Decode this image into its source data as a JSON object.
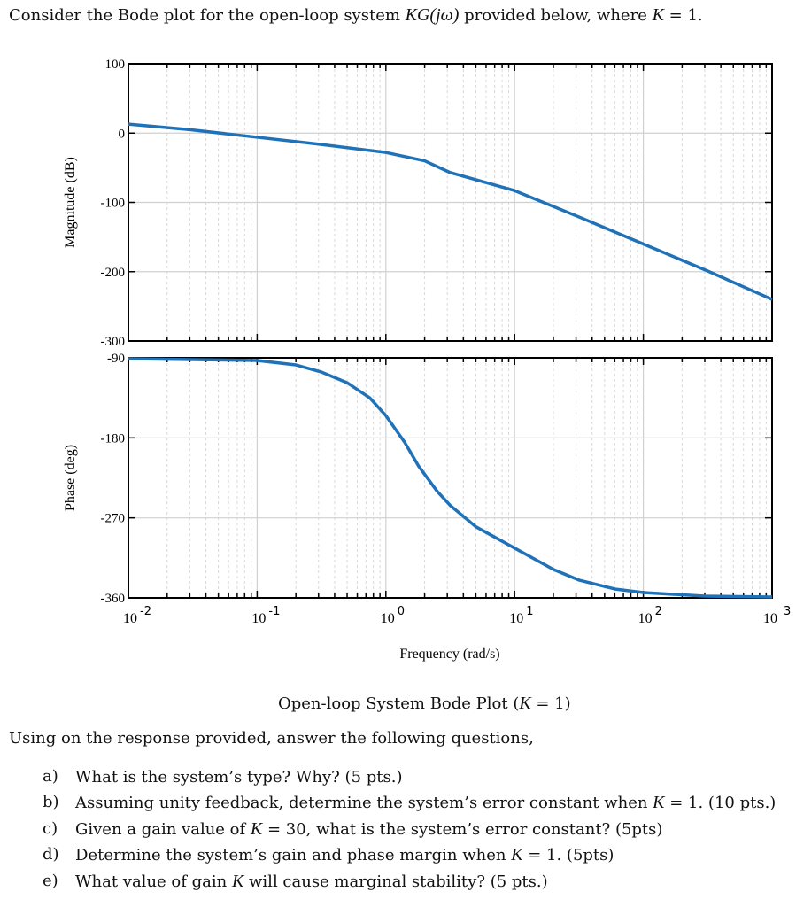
{
  "title": {
    "pre": "Consider the Bode plot for the open-loop system ",
    "math1": "KG(jω)",
    "mid": " provided below, where ",
    "math2": "K",
    "eq": " = 1."
  },
  "caption": {
    "pre": "Open-loop System Bode Plot (",
    "math": "K",
    "post": " = 1)"
  },
  "intro": "Using on the response provided, answer the following questions,",
  "questions": [
    {
      "letter": "a)",
      "pre": "What is the system’s type? Why? (5 pts.)",
      "math": "",
      "post": ""
    },
    {
      "letter": "b)",
      "pre": "Assuming unity feedback, determine the system’s error constant when ",
      "math": "K",
      "post": " = 1. (10 pts.)"
    },
    {
      "letter": "c)",
      "pre": "Given a gain value of ",
      "math": "K",
      "post": " = 30, what is the system’s error constant? (5pts)"
    },
    {
      "letter": "d)",
      "pre": "Determine the system’s gain and phase margin when ",
      "math": "K",
      "post": " = 1. (5pts)"
    },
    {
      "letter": "e)",
      "pre": "What value of gain ",
      "math": "K",
      "post": " will cause marginal stability? (5 pts.)"
    }
  ],
  "chart_data": {
    "type": "line",
    "title": "Open-loop System Bode Plot (K = 1)",
    "xlabel": "Frequency  (rad/s)",
    "xscale": "log",
    "xlim": [
      0.01,
      1000
    ],
    "x_ticks": [
      {
        "base": "10",
        "exp": "-2"
      },
      {
        "base": "10",
        "exp": "-1"
      },
      {
        "base": "10",
        "exp": "0"
      },
      {
        "base": "10",
        "exp": "1"
      },
      {
        "base": "10",
        "exp": "2"
      },
      {
        "base": "10",
        "exp": "3"
      }
    ],
    "grid": true,
    "color": "#1f72b8",
    "magnitude": {
      "ylabel": "Magnitude (dB)",
      "ylim": [
        -300,
        100
      ],
      "y_ticks": [
        "100",
        "0",
        "-100",
        "-200",
        "-300"
      ],
      "y_tick_values": [
        100,
        0,
        -100,
        -200,
        -300
      ],
      "x": [
        0.01,
        0.03,
        0.1,
        0.3,
        1,
        2,
        3.16,
        10,
        31.6,
        100,
        316,
        1000
      ],
      "y": [
        13,
        5,
        -6,
        -16,
        -28,
        -40,
        -57,
        -83,
        -121,
        -160,
        -199,
        -240
      ]
    },
    "phase": {
      "ylabel": "Phase (deg)",
      "ylim": [
        -360,
        -90
      ],
      "y_ticks": [
        "-90",
        "-180",
        "-270",
        "-360"
      ],
      "y_tick_values": [
        -90,
        -180,
        -270,
        -360
      ],
      "x": [
        0.01,
        0.1,
        0.2,
        0.316,
        0.5,
        0.75,
        1,
        1.4,
        1.8,
        2.5,
        3.16,
        5,
        10,
        20,
        31.6,
        60,
        100,
        300,
        1000
      ],
      "y": [
        -91,
        -93,
        -98,
        -106,
        -118,
        -135,
        -155,
        -185,
        -212,
        -240,
        -256,
        -280,
        -304,
        -328,
        -340,
        -350,
        -354,
        -358,
        -359
      ]
    }
  }
}
